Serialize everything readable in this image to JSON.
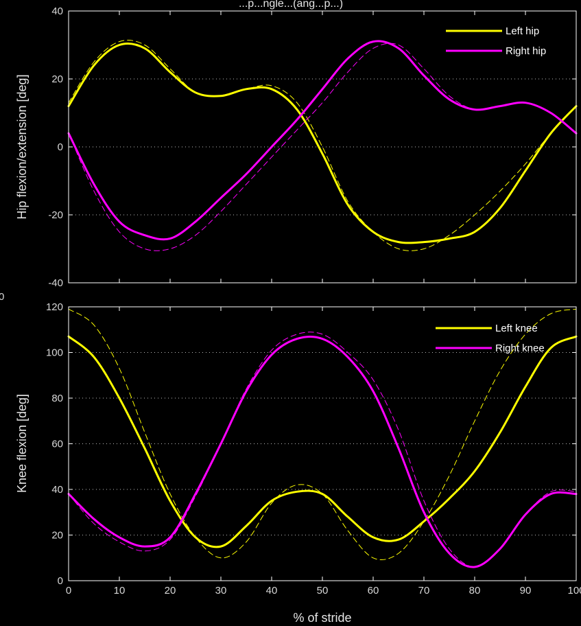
{
  "page": {
    "title_partial": "...p...ngle...(ang...p...)",
    "stray_label": "0"
  },
  "colors": {
    "background": "#000000",
    "axes": "#ffffff",
    "grid": "#bfbfbf",
    "left": "#ffff00",
    "right": "#ff00ff"
  },
  "chart_data": [
    {
      "type": "line",
      "ylabel": "Hip flexion/extension [deg]",
      "xlabel": "",
      "xlim": [
        0,
        100
      ],
      "ylim": [
        -40,
        40
      ],
      "xticks": [
        0,
        10,
        20,
        30,
        40,
        50,
        60,
        70,
        80,
        90,
        100
      ],
      "xtick_labels": [
        "",
        "",
        "",
        "",
        "",
        "",
        "",
        "",
        "",
        "",
        ""
      ],
      "yticks": [
        -40,
        -20,
        0,
        20,
        40
      ],
      "ytick_labels": [
        "-40",
        "-20",
        "0",
        "20",
        "40"
      ],
      "grid": "dotted horizontal",
      "legend_position": "top-right",
      "series": [
        {
          "name": "Left hip",
          "style": "solid",
          "color": "yellow",
          "x": [
            0,
            5,
            10,
            15,
            20,
            25,
            30,
            35,
            40,
            45,
            50,
            55,
            60,
            65,
            70,
            75,
            80,
            85,
            90,
            95,
            100
          ],
          "y": [
            12,
            24,
            30,
            29,
            22,
            16,
            15,
            17,
            17,
            11,
            -2,
            -17,
            -25,
            -28,
            -28,
            -27,
            -25,
            -18,
            -7,
            4,
            12
          ]
        },
        {
          "name": "",
          "style": "dashed",
          "color": "yellow",
          "x": [
            0,
            5,
            10,
            15,
            20,
            25,
            30,
            35,
            40,
            45,
            50,
            55,
            60,
            65,
            70,
            75,
            80,
            85,
            90,
            95,
            100
          ],
          "y": [
            13,
            25,
            31,
            30,
            23,
            16,
            15,
            17,
            18,
            13,
            0,
            -16,
            -25,
            -30,
            -30,
            -26,
            -20,
            -13,
            -5,
            4,
            12
          ]
        },
        {
          "name": "Right hip",
          "style": "solid",
          "color": "magenta",
          "x": [
            0,
            5,
            10,
            15,
            20,
            25,
            30,
            35,
            40,
            45,
            50,
            55,
            60,
            65,
            70,
            75,
            80,
            85,
            90,
            95,
            100
          ],
          "y": [
            4,
            -11,
            -22,
            -26,
            -27,
            -22,
            -15,
            -8,
            0,
            8,
            17,
            26,
            31,
            29,
            21,
            14,
            11,
            12,
            13,
            10,
            4
          ]
        },
        {
          "name": "",
          "style": "dashed",
          "color": "magenta",
          "x": [
            0,
            5,
            10,
            15,
            20,
            25,
            30,
            35,
            40,
            45,
            50,
            55,
            60,
            65,
            70,
            75,
            80,
            85,
            90,
            95,
            100
          ],
          "y": [
            4,
            -13,
            -25,
            -30,
            -30,
            -26,
            -19,
            -11,
            -3,
            5,
            13,
            22,
            29,
            30,
            23,
            15,
            11,
            12,
            13,
            10,
            4
          ]
        }
      ]
    },
    {
      "type": "line",
      "ylabel": "Knee flexion [deg]",
      "xlabel": "% of stride",
      "xlim": [
        0,
        100
      ],
      "ylim": [
        0,
        120
      ],
      "xticks": [
        0,
        10,
        20,
        30,
        40,
        50,
        60,
        70,
        80,
        90,
        100
      ],
      "xtick_labels": [
        "0",
        "10",
        "20",
        "30",
        "40",
        "50",
        "60",
        "70",
        "80",
        "90",
        "100"
      ],
      "yticks": [
        0,
        20,
        40,
        60,
        80,
        100,
        120
      ],
      "ytick_labels": [
        "0",
        "20",
        "40",
        "60",
        "80",
        "100",
        "120"
      ],
      "grid": "dotted horizontal",
      "legend_position": "top-right",
      "series": [
        {
          "name": "Left knee",
          "style": "solid",
          "color": "yellow",
          "x": [
            0,
            5,
            10,
            15,
            20,
            25,
            30,
            35,
            40,
            45,
            50,
            55,
            60,
            65,
            70,
            75,
            80,
            85,
            90,
            95,
            100
          ],
          "y": [
            107,
            98,
            80,
            58,
            35,
            19,
            15,
            24,
            35,
            39,
            38,
            28,
            19,
            18,
            26,
            36,
            48,
            65,
            85,
            102,
            107
          ]
        },
        {
          "name": "",
          "style": "dashed",
          "color": "yellow",
          "x": [
            0,
            5,
            10,
            15,
            20,
            25,
            30,
            35,
            40,
            45,
            50,
            55,
            60,
            65,
            70,
            75,
            80,
            85,
            90,
            95,
            100
          ],
          "y": [
            119,
            112,
            93,
            65,
            38,
            19,
            10,
            17,
            34,
            42,
            38,
            22,
            10,
            12,
            26,
            46,
            70,
            92,
            108,
            117,
            119
          ]
        },
        {
          "name": "Right knee",
          "style": "solid",
          "color": "magenta",
          "x": [
            0,
            5,
            10,
            15,
            20,
            25,
            30,
            35,
            40,
            45,
            50,
            55,
            60,
            65,
            70,
            75,
            80,
            85,
            90,
            95,
            100
          ],
          "y": [
            38,
            27,
            19,
            15,
            19,
            38,
            60,
            83,
            99,
            106,
            106,
            98,
            83,
            58,
            30,
            12,
            6,
            14,
            29,
            38,
            38
          ]
        },
        {
          "name": "",
          "style": "dashed",
          "color": "magenta",
          "x": [
            0,
            5,
            10,
            15,
            20,
            25,
            30,
            35,
            40,
            45,
            50,
            55,
            60,
            65,
            70,
            75,
            80,
            85,
            90,
            95,
            100
          ],
          "y": [
            38,
            25,
            17,
            13,
            18,
            37,
            60,
            84,
            101,
            108,
            108,
            100,
            88,
            66,
            35,
            14,
            6,
            14,
            29,
            39,
            39
          ]
        }
      ]
    }
  ]
}
